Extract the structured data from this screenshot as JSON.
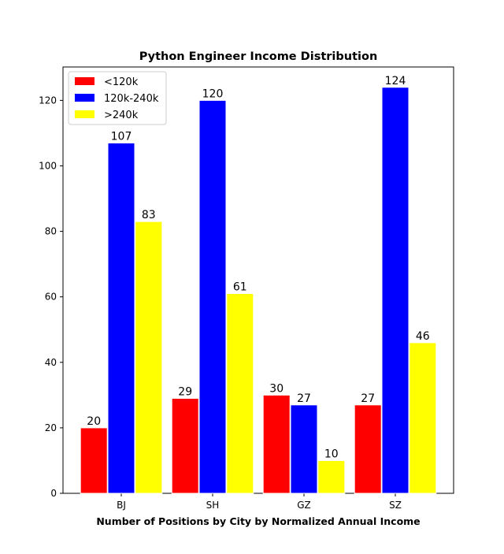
{
  "chart_data": {
    "type": "bar",
    "title": "Python Engineer Income Distribution",
    "xlabel": "Number of Positions by City by Normalized Annual Income",
    "ylabel": "",
    "categories": [
      "BJ",
      "SH",
      "GZ",
      "SZ"
    ],
    "series": [
      {
        "name": "<120k",
        "color": "#ff0000",
        "values": [
          20,
          29,
          30,
          27
        ]
      },
      {
        "name": "120k-240k",
        "color": "#0000ff",
        "values": [
          107,
          120,
          27,
          124
        ]
      },
      {
        "name": ">240k",
        "color": "#ffff00",
        "values": [
          83,
          61,
          10,
          46
        ]
      }
    ],
    "ylim": [
      0,
      130.2
    ],
    "yticks": [
      0,
      20,
      40,
      60,
      80,
      100,
      120
    ],
    "grid": false,
    "legend": "top-left"
  }
}
